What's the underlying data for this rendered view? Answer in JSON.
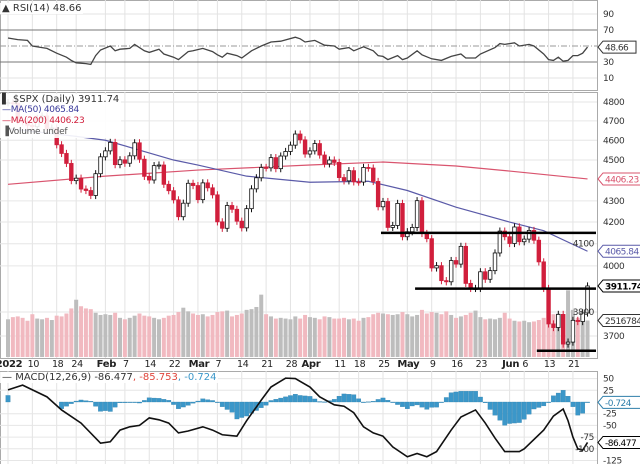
{
  "chart_data": {
    "type": "candlestick",
    "symbol_label": "$SPX (Daily) 3911.74",
    "rsi_panel": {
      "label": "RSI(14) 48.66",
      "current": 48.66,
      "current_label": "48.66",
      "ticks": [
        "90",
        "70",
        "30",
        "10"
      ],
      "tick_values": [
        90,
        70,
        30,
        10
      ],
      "bands": [
        70,
        30
      ],
      "midline": 50,
      "series": [
        [
          "01-03",
          60
        ],
        [
          "01-05",
          58
        ],
        [
          "01-07",
          57
        ],
        [
          "01-10",
          50
        ],
        [
          "01-12",
          48
        ],
        [
          "01-13",
          47
        ],
        [
          "01-18",
          41
        ],
        [
          "01-20",
          36
        ],
        [
          "01-21",
          32
        ],
        [
          "01-24",
          29
        ],
        [
          "01-26",
          28
        ],
        [
          "01-27",
          27
        ],
        [
          "01-28",
          38
        ],
        [
          "01-31",
          45
        ],
        [
          "02-02",
          50
        ],
        [
          "02-03",
          44
        ],
        [
          "02-04",
          46
        ],
        [
          "02-08",
          47
        ],
        [
          "02-09",
          52
        ],
        [
          "02-11",
          44
        ],
        [
          "02-14",
          42
        ],
        [
          "02-16",
          46
        ],
        [
          "02-17",
          40
        ],
        [
          "02-22",
          36
        ],
        [
          "02-23",
          33
        ],
        [
          "02-25",
          43
        ],
        [
          "02-28",
          44
        ],
        [
          "03-02",
          47
        ],
        [
          "03-04",
          43
        ],
        [
          "03-07",
          39
        ],
        [
          "03-08",
          36
        ],
        [
          "03-09",
          41
        ],
        [
          "03-11",
          38
        ],
        [
          "03-14",
          35
        ],
        [
          "03-16",
          44
        ],
        [
          "03-18",
          50
        ],
        [
          "03-22",
          55
        ],
        [
          "03-24",
          56
        ],
        [
          "03-29",
          61
        ],
        [
          "03-30",
          59
        ],
        [
          "03-31",
          55
        ],
        [
          "04-04",
          57
        ],
        [
          "04-06",
          51
        ],
        [
          "04-08",
          50
        ],
        [
          "04-11",
          46
        ],
        [
          "04-13",
          48
        ],
        [
          "04-14",
          44
        ],
        [
          "04-19",
          49
        ],
        [
          "04-21",
          44
        ],
        [
          "04-22",
          38
        ],
        [
          "04-25",
          37
        ],
        [
          "04-26",
          33
        ],
        [
          "04-28",
          38
        ],
        [
          "04-29",
          33
        ],
        [
          "05-02",
          35
        ],
        [
          "05-04",
          44
        ],
        [
          "05-05",
          39
        ],
        [
          "05-09",
          34
        ],
        [
          "05-11",
          32
        ],
        [
          "05-13",
          37
        ],
        [
          "05-17",
          40
        ],
        [
          "05-18",
          35
        ],
        [
          "05-20",
          35
        ],
        [
          "05-23",
          40
        ],
        [
          "05-26",
          48
        ],
        [
          "05-27",
          53
        ],
        [
          "05-31",
          52
        ],
        [
          "06-02",
          54
        ],
        [
          "06-03",
          50
        ],
        [
          "06-07",
          52
        ],
        [
          "06-08",
          50
        ],
        [
          "06-10",
          40
        ],
        [
          "06-13",
          33
        ],
        [
          "06-14",
          32
        ],
        [
          "06-15",
          36
        ],
        [
          "06-16",
          31
        ],
        [
          "06-17",
          32
        ],
        [
          "06-21",
          38
        ],
        [
          "06-22",
          38
        ],
        [
          "06-23",
          41
        ],
        [
          "06-24",
          48.66
        ]
      ]
    },
    "price_panel": {
      "scale": "log",
      "ylim": [
        3700,
        4800
      ],
      "ticks": [
        "4800",
        "4700",
        "4600",
        "4500",
        "4300",
        "4200",
        "4100",
        "4000",
        "3800",
        "3700"
      ],
      "tick_values": [
        4800,
        4700,
        4600,
        4500,
        4300,
        4200,
        4100,
        4000,
        3800,
        3700
      ],
      "ma50": {
        "label": "MA(50) 4065.84",
        "current_label": "4065.84",
        "color": "#5a5aa8",
        "series": [
          [
            "01-03",
            4660
          ],
          [
            "01-24",
            4620
          ],
          [
            "02-01",
            4600
          ],
          [
            "02-22",
            4500
          ],
          [
            "03-01",
            4475
          ],
          [
            "03-15",
            4420
          ],
          [
            "04-01",
            4390
          ],
          [
            "04-20",
            4395
          ],
          [
            "05-02",
            4350
          ],
          [
            "05-16",
            4270
          ],
          [
            "06-01",
            4200
          ],
          [
            "06-10",
            4160
          ],
          [
            "06-24",
            4065.84
          ]
        ]
      },
      "ma200": {
        "label": "MA(200) 4406.23",
        "current_label": "4406.23",
        "color": "#d9546e",
        "series": [
          [
            "01-03",
            4380
          ],
          [
            "02-01",
            4420
          ],
          [
            "03-01",
            4450
          ],
          [
            "04-01",
            4475
          ],
          [
            "04-25",
            4490
          ],
          [
            "05-16",
            4470
          ],
          [
            "06-01",
            4445
          ],
          [
            "06-24",
            4406.23
          ]
        ]
      },
      "volume_label": "Volume undef",
      "volume_current_label": "2516784",
      "close_current_label": "3911.74",
      "annotations": [
        {
          "price": 4150,
          "from": "04-25"
        },
        {
          "price": 3900,
          "from": "05-04"
        },
        {
          "price": 3640,
          "from": "06-09"
        }
      ]
    },
    "dates": [
      "01-03",
      "01-04",
      "01-05",
      "01-06",
      "01-07",
      "01-10",
      "01-11",
      "01-12",
      "01-13",
      "01-14",
      "01-18",
      "01-19",
      "01-20",
      "01-21",
      "01-24",
      "01-25",
      "01-26",
      "01-27",
      "01-28",
      "01-31",
      "02-01",
      "02-02",
      "02-03",
      "02-04",
      "02-07",
      "02-08",
      "02-09",
      "02-10",
      "02-11",
      "02-14",
      "02-15",
      "02-16",
      "02-17",
      "02-18",
      "02-22",
      "02-23",
      "02-24",
      "02-25",
      "02-28",
      "03-01",
      "03-02",
      "03-03",
      "03-04",
      "03-07",
      "03-08",
      "03-09",
      "03-10",
      "03-11",
      "03-14",
      "03-15",
      "03-16",
      "03-17",
      "03-18",
      "03-21",
      "03-22",
      "03-23",
      "03-24",
      "03-25",
      "03-28",
      "03-29",
      "03-30",
      "03-31",
      "04-01",
      "04-04",
      "04-05",
      "04-06",
      "04-07",
      "04-08",
      "04-11",
      "04-12",
      "04-13",
      "04-14",
      "04-18",
      "04-19",
      "04-20",
      "04-21",
      "04-22",
      "04-25",
      "04-26",
      "04-27",
      "04-28",
      "04-29",
      "05-02",
      "05-03",
      "05-04",
      "05-05",
      "05-06",
      "05-09",
      "05-10",
      "05-11",
      "05-12",
      "05-13",
      "05-16",
      "05-17",
      "05-18",
      "05-19",
      "05-20",
      "05-23",
      "05-24",
      "05-25",
      "05-26",
      "05-27",
      "05-31",
      "06-01",
      "06-02",
      "06-03",
      "06-06",
      "06-07",
      "06-08",
      "06-09",
      "06-10",
      "06-13",
      "06-14",
      "06-15",
      "06-16",
      "06-17",
      "06-21",
      "06-22",
      "06-23",
      "06-24"
    ],
    "close": [
      4796,
      4793,
      4701,
      4696,
      4677,
      4670,
      4713,
      4726,
      4659,
      4663,
      4577,
      4533,
      4483,
      4398,
      4410,
      4357,
      4350,
      4326,
      4432,
      4516,
      4546,
      4589,
      4477,
      4501,
      4484,
      4521,
      4587,
      4504,
      4419,
      4401,
      4472,
      4475,
      4380,
      4349,
      4305,
      4225,
      4289,
      4385,
      4374,
      4306,
      4387,
      4363,
      4329,
      4201,
      4171,
      4278,
      4260,
      4204,
      4173,
      4263,
      4358,
      4412,
      4463,
      4461,
      4512,
      4457,
      4520,
      4543,
      4575,
      4632,
      4602,
      4530,
      4546,
      4583,
      4525,
      4481,
      4500,
      4488,
      4413,
      4397,
      4447,
      4392,
      4391,
      4463,
      4460,
      4394,
      4272,
      4297,
      4175,
      4184,
      4288,
      4132,
      4155,
      4175,
      4301,
      4147,
      4123,
      3991,
      4001,
      3935,
      3930,
      4024,
      4008,
      4088,
      3923,
      3901,
      3901,
      3974,
      3941,
      3979,
      4058,
      4158,
      4132,
      4101,
      4177,
      4109,
      4121,
      4161,
      4116,
      4018,
      3901,
      3750,
      3735,
      3790,
      3667,
      3675,
      3765,
      3760,
      3796,
      3911.74
    ],
    "volume": [
      2600000,
      2750000,
      2800000,
      2700000,
      2500000,
      2950000,
      2650000,
      2600000,
      2700000,
      2550000,
      2850000,
      2800000,
      3000000,
      3350000,
      3950000,
      3500000,
      3350000,
      3300000,
      3050000,
      2900000,
      2950000,
      2900000,
      3050000,
      2700000,
      2600000,
      2700000,
      2850000,
      3000000,
      2850000,
      2800000,
      2700000,
      2600000,
      2700000,
      2850000,
      2900000,
      3100000,
      3400000,
      3150000,
      3000000,
      2900000,
      2950000,
      2800000,
      2900000,
      3100000,
      3150000,
      3200000,
      2800000,
      2900000,
      3000000,
      3250000,
      3300000,
      3450000,
      4300000,
      2950000,
      2800000,
      2650000,
      2700000,
      2650000,
      2600000,
      2800000,
      2650000,
      2900000,
      2750000,
      2700000,
      2600000,
      2800000,
      2750000,
      2650000,
      2650000,
      2700000,
      2600000,
      2650000,
      2500000,
      2700000,
      2750000,
      2950000,
      3050000,
      3000000,
      2950000,
      2900000,
      2950000,
      3100000,
      2950000,
      2800000,
      2900000,
      3250000,
      3000000,
      3100000,
      3050000,
      2950000,
      3150000,
      2900000,
      2700000,
      2800000,
      2900000,
      3050000,
      3200000,
      2750000,
      2600000,
      2650000,
      2600000,
      2700000,
      3050000,
      2650000,
      2500000,
      2450000,
      2500000,
      2400000,
      2450000,
      2550000,
      2700000,
      3100000,
      2950000,
      3000000,
      2900000,
      4600000,
      3250000,
      2700000,
      2800000,
      2516784
    ],
    "x_labels": [
      {
        "label": "2022",
        "date": "01-03",
        "month": true
      },
      {
        "label": "10",
        "date": "01-10"
      },
      {
        "label": "18",
        "date": "01-18"
      },
      {
        "label": "24",
        "date": "01-24"
      },
      {
        "label": "Feb",
        "date": "02-01",
        "month": true
      },
      {
        "label": "7",
        "date": "02-07"
      },
      {
        "label": "14",
        "date": "02-14"
      },
      {
        "label": "22",
        "date": "02-22"
      },
      {
        "label": "Mar",
        "date": "03-01",
        "month": true
      },
      {
        "label": "7",
        "date": "03-07"
      },
      {
        "label": "14",
        "date": "03-14"
      },
      {
        "label": "21",
        "date": "03-21"
      },
      {
        "label": "28",
        "date": "03-28"
      },
      {
        "label": "Apr",
        "date": "04-01",
        "month": true
      },
      {
        "label": "11",
        "date": "04-11"
      },
      {
        "label": "18",
        "date": "04-18"
      },
      {
        "label": "25",
        "date": "04-25"
      },
      {
        "label": "May",
        "date": "05-02",
        "month": true
      },
      {
        "label": "9",
        "date": "05-09"
      },
      {
        "label": "16",
        "date": "05-16"
      },
      {
        "label": "23",
        "date": "05-23"
      },
      {
        "label": "Jun",
        "date": "06-01",
        "month": true
      },
      {
        "label": "6",
        "date": "06-06"
      },
      {
        "label": "13",
        "date": "06-13"
      },
      {
        "label": "21",
        "date": "06-21"
      }
    ],
    "macd_panel": {
      "label": "MACD(12,26,9) -86.477",
      "signal_label": ", -85.753",
      "hist_label": ", -0.724",
      "macd_current_label": "-86.477",
      "hist_current_label": "-0.724",
      "ticks": [
        "50",
        "25",
        "-25",
        "-50",
        "-75",
        "-100",
        "-125"
      ],
      "tick_values": [
        50,
        25,
        -25,
        -50,
        -75,
        -100,
        -125
      ],
      "colors": {
        "macd": "#111111",
        "signal": "#e0463c",
        "histogram": "#3b97c9"
      },
      "macd": [
        [
          "01-03",
          26
        ],
        [
          "01-06",
          36
        ],
        [
          "01-13",
          11
        ],
        [
          "01-19",
          -17
        ],
        [
          "01-25",
          -45
        ],
        [
          "01-31",
          -88
        ],
        [
          "02-02",
          -85
        ],
        [
          "02-04",
          -60
        ],
        [
          "02-08",
          -53
        ],
        [
          "02-10",
          -50
        ],
        [
          "02-14",
          -34
        ],
        [
          "02-16",
          -38
        ],
        [
          "02-18",
          -45
        ],
        [
          "02-23",
          -66
        ],
        [
          "02-25",
          -62
        ],
        [
          "03-02",
          -53
        ],
        [
          "03-04",
          -60
        ],
        [
          "03-08",
          -70
        ],
        [
          "03-11",
          -73
        ],
        [
          "03-15",
          -40
        ],
        [
          "03-18",
          4
        ],
        [
          "03-22",
          32
        ],
        [
          "03-25",
          51
        ],
        [
          "03-29",
          50
        ],
        [
          "04-01",
          32
        ],
        [
          "04-05",
          11
        ],
        [
          "04-08",
          -6
        ],
        [
          "04-12",
          -9
        ],
        [
          "04-14",
          -23
        ],
        [
          "04-19",
          -53
        ],
        [
          "04-21",
          -66
        ],
        [
          "04-25",
          -73
        ],
        [
          "04-27",
          -96
        ],
        [
          "05-02",
          -117
        ],
        [
          "05-04",
          -110
        ],
        [
          "05-06",
          -117
        ],
        [
          "05-10",
          -106
        ],
        [
          "05-13",
          -60
        ],
        [
          "05-17",
          -32
        ],
        [
          "05-20",
          -17
        ],
        [
          "05-24",
          -45
        ],
        [
          "05-26",
          -77
        ],
        [
          "05-31",
          -106
        ],
        [
          "06-03",
          -106
        ],
        [
          "06-06",
          -100
        ],
        [
          "06-10",
          -60
        ],
        [
          "06-14",
          -30
        ],
        [
          "06-16",
          -15
        ],
        [
          "06-17",
          -40
        ],
        [
          "06-21",
          -75
        ],
        [
          "06-22",
          -100
        ],
        [
          "06-23",
          -103
        ],
        [
          "06-24",
          -86.477
        ]
      ],
      "signal": [
        [
          "01-03",
          12
        ],
        [
          "01-09",
          25
        ],
        [
          "01-18",
          10
        ],
        [
          "01-24",
          -40
        ],
        [
          "01-27",
          -68
        ],
        [
          "02-01",
          -68
        ],
        [
          "02-07",
          -55
        ],
        [
          "02-14",
          -43
        ],
        [
          "02-22",
          -50
        ],
        [
          "03-01",
          -58
        ],
        [
          "03-07",
          -65
        ],
        [
          "03-10",
          -50
        ],
        [
          "03-15",
          -10
        ],
        [
          "03-21",
          25
        ],
        [
          "03-25",
          40
        ],
        [
          "03-30",
          30
        ],
        [
          "04-06",
          5
        ],
        [
          "04-11",
          -20
        ],
        [
          "04-18",
          -45
        ],
        [
          "04-22",
          -75
        ],
        [
          "04-27",
          -95
        ],
        [
          "05-03",
          -105
        ],
        [
          "05-09",
          -100
        ],
        [
          "05-13",
          -80
        ],
        [
          "05-17",
          -55
        ],
        [
          "05-20",
          -40
        ],
        [
          "05-25",
          -45
        ],
        [
          "06-01",
          -60
        ],
        [
          "06-08",
          -65
        ],
        [
          "06-13",
          -45
        ],
        [
          "06-16",
          -40
        ],
        [
          "06-21",
          -65
        ],
        [
          "06-24",
          -85.753
        ]
      ]
    },
    "candle_colors": {
      "down": "#d11f3c",
      "up": "#111111"
    },
    "volume_colors": {
      "down": "#f1b9c0",
      "up": "#bdbdbd"
    }
  }
}
